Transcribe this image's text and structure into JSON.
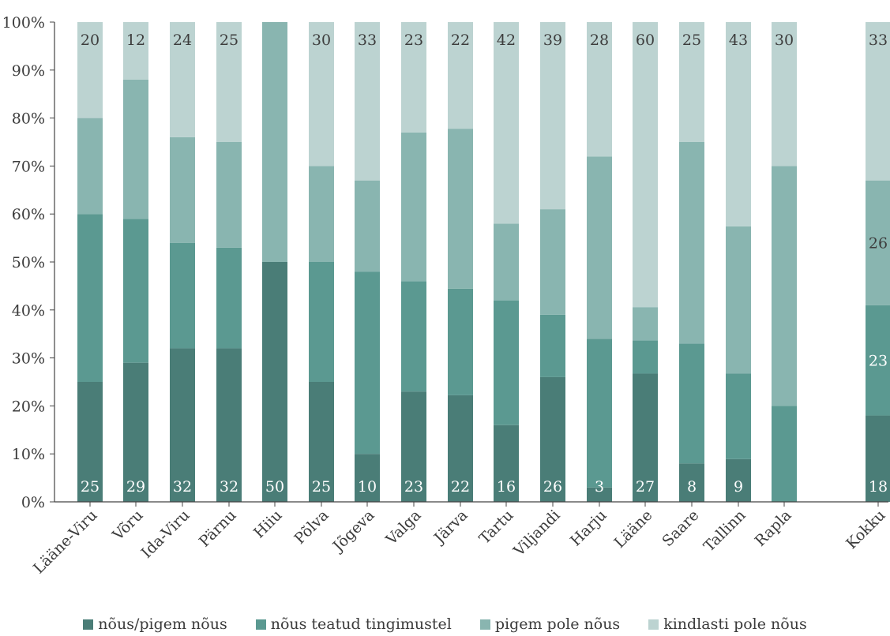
{
  "chart_data": {
    "type": "bar",
    "stacked": true,
    "percent": true,
    "categories": [
      "Lääne-Viru",
      "Võru",
      "Ida-Viru",
      "Pärnu",
      "Hiiu",
      "Põlva",
      "Jõgeva",
      "Valga",
      "Järva",
      "Tartu",
      "Viljandi",
      "Harju",
      "Lääne",
      "Saare",
      "Tallinn",
      "Rapla",
      "Kokku"
    ],
    "series": [
      {
        "name": "nõus/pigem nõus",
        "color": "#4a7d77",
        "values": [
          25,
          29,
          32,
          32,
          50,
          25,
          10,
          23,
          22,
          16,
          26,
          3,
          27,
          8,
          9,
          0,
          18
        ],
        "labels": [
          "25",
          "29",
          "32",
          "32",
          "50",
          "25",
          "10",
          "23",
          "22",
          "16",
          "26",
          "3",
          "27",
          "8",
          "9",
          "",
          "18"
        ]
      },
      {
        "name": "nõus teatud tingimustel",
        "color": "#5b9991",
        "values": [
          35,
          30,
          22,
          21,
          0,
          25,
          38,
          23,
          22,
          26,
          13,
          31,
          7,
          25,
          18,
          20,
          23
        ],
        "labels": [
          "",
          "",
          "",
          "",
          "",
          "",
          "",
          "",
          "",
          "",
          "",
          "",
          "",
          "",
          "",
          "",
          "23"
        ]
      },
      {
        "name": "pigem pole nõus",
        "color": "#89b5b0",
        "values": [
          20,
          29,
          22,
          22,
          50,
          20,
          19,
          31,
          33,
          16,
          22,
          38,
          7,
          42,
          31,
          50,
          26
        ],
        "labels": [
          "",
          "",
          "",
          "",
          "",
          "",
          "",
          "",
          "",
          "",
          "",
          "",
          "",
          "",
          "",
          "",
          "26"
        ]
      },
      {
        "name": "kindlasti pole nõus",
        "color": "#bcd3d1",
        "values": [
          20,
          12,
          24,
          25,
          0,
          30,
          33,
          23,
          22,
          42,
          39,
          28,
          60,
          25,
          43,
          30,
          33
        ],
        "labels": [
          "20",
          "12",
          "24",
          "25",
          "",
          "30",
          "33",
          "23",
          "22",
          "42",
          "39",
          "28",
          "60",
          "25",
          "43",
          "30",
          "33"
        ]
      }
    ],
    "yticks": [
      "0%",
      "10%",
      "20%",
      "30%",
      "40%",
      "50%",
      "60%",
      "70%",
      "80%",
      "90%",
      "100%"
    ],
    "ylim": [
      0,
      100
    ],
    "grid": false,
    "legend_position": "bottom"
  }
}
